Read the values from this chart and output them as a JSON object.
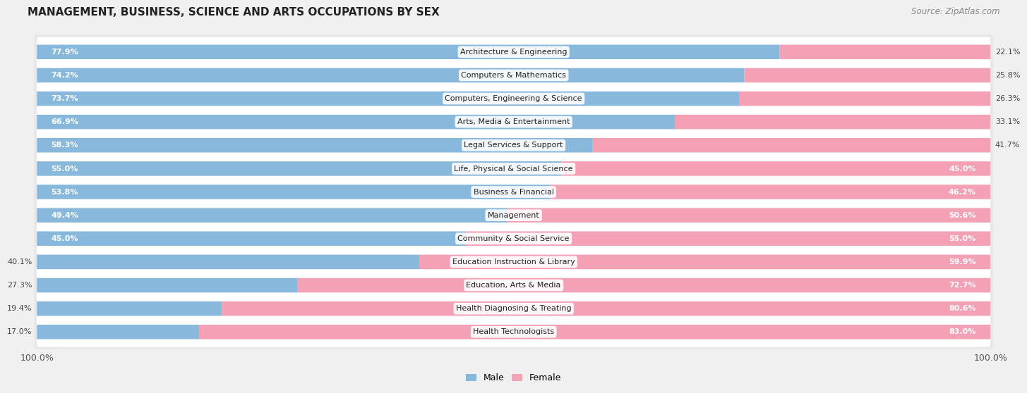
{
  "title": "MANAGEMENT, BUSINESS, SCIENCE AND ARTS OCCUPATIONS BY SEX",
  "source": "Source: ZipAtlas.com",
  "categories": [
    "Architecture & Engineering",
    "Computers & Mathematics",
    "Computers, Engineering & Science",
    "Arts, Media & Entertainment",
    "Legal Services & Support",
    "Life, Physical & Social Science",
    "Business & Financial",
    "Management",
    "Community & Social Service",
    "Education Instruction & Library",
    "Education, Arts & Media",
    "Health Diagnosing & Treating",
    "Health Technologists"
  ],
  "male_pct": [
    77.9,
    74.2,
    73.7,
    66.9,
    58.3,
    55.0,
    53.8,
    49.4,
    45.0,
    40.1,
    27.3,
    19.4,
    17.0
  ],
  "female_pct": [
    22.1,
    25.8,
    26.3,
    33.1,
    41.7,
    45.0,
    46.2,
    50.6,
    55.0,
    59.9,
    72.7,
    80.6,
    83.0
  ],
  "male_color": "#88b8dc",
  "female_color": "#f4a0b5",
  "bg_color": "#f0f0f0",
  "bar_bg_color": "#ffffff",
  "row_bg_color": "#e8e8e8",
  "title_fontsize": 11,
  "label_fontsize": 8.5,
  "tick_fontsize": 9,
  "source_fontsize": 8.5
}
